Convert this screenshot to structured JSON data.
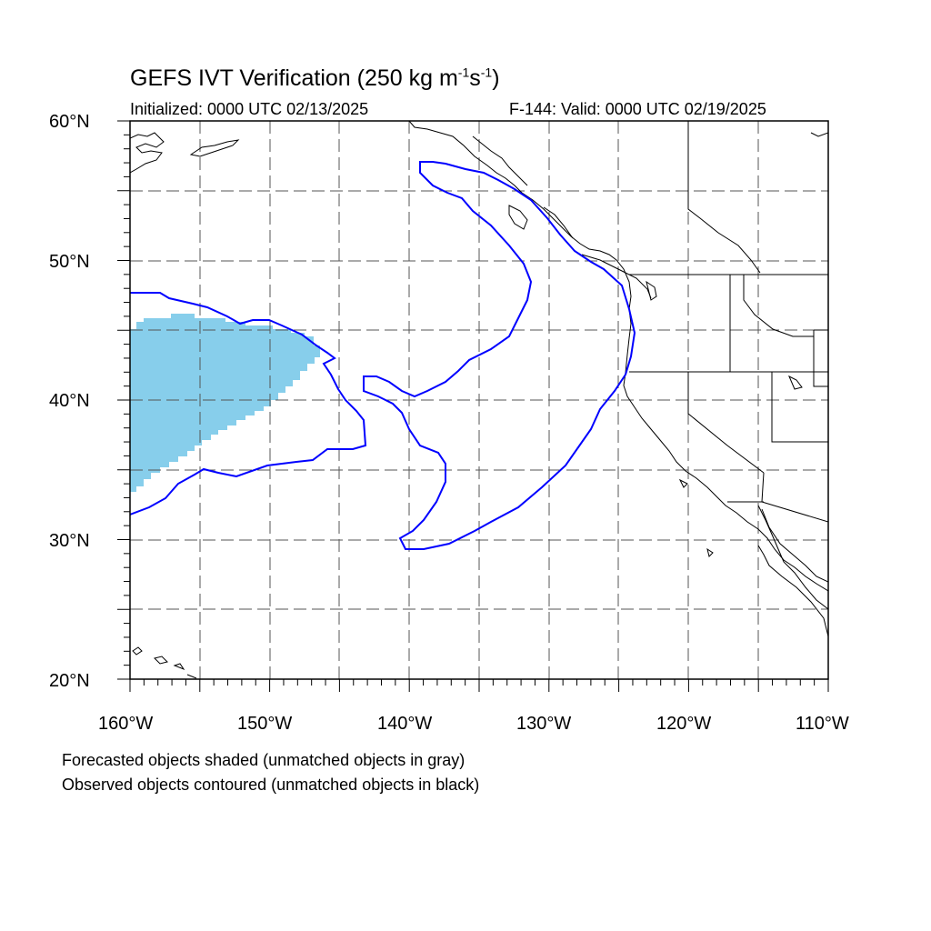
{
  "title": {
    "main": "GEFS IVT Verification (250 kg m",
    "sup1": "-1",
    "mid": "s",
    "sup2": "-1",
    "end": ")"
  },
  "subtitle_left": "Initialized: 0000 UTC 02/13/2025",
  "subtitle_right": "F-144: Valid: 0000 UTC 02/19/2025",
  "axes": {
    "lon_range": [
      -160,
      -110
    ],
    "lat_range": [
      20,
      60
    ],
    "x_tick_labels": [
      "160°W",
      "150°W",
      "140°W",
      "130°W",
      "120°W",
      "110°W"
    ],
    "y_tick_labels": [
      "60°N",
      "50°N",
      "40°N",
      "30°N",
      "20°N"
    ],
    "grid": true
  },
  "captions": {
    "line1": "Forecasted objects shaded (unmatched objects in gray)",
    "line2": "Observed objects contoured (unmatched objects in black)"
  },
  "colors": {
    "forecast_fill": "#87ceeb",
    "observed_contour": "#0000ff",
    "coastline": "#000000",
    "grid": "#555555"
  }
}
